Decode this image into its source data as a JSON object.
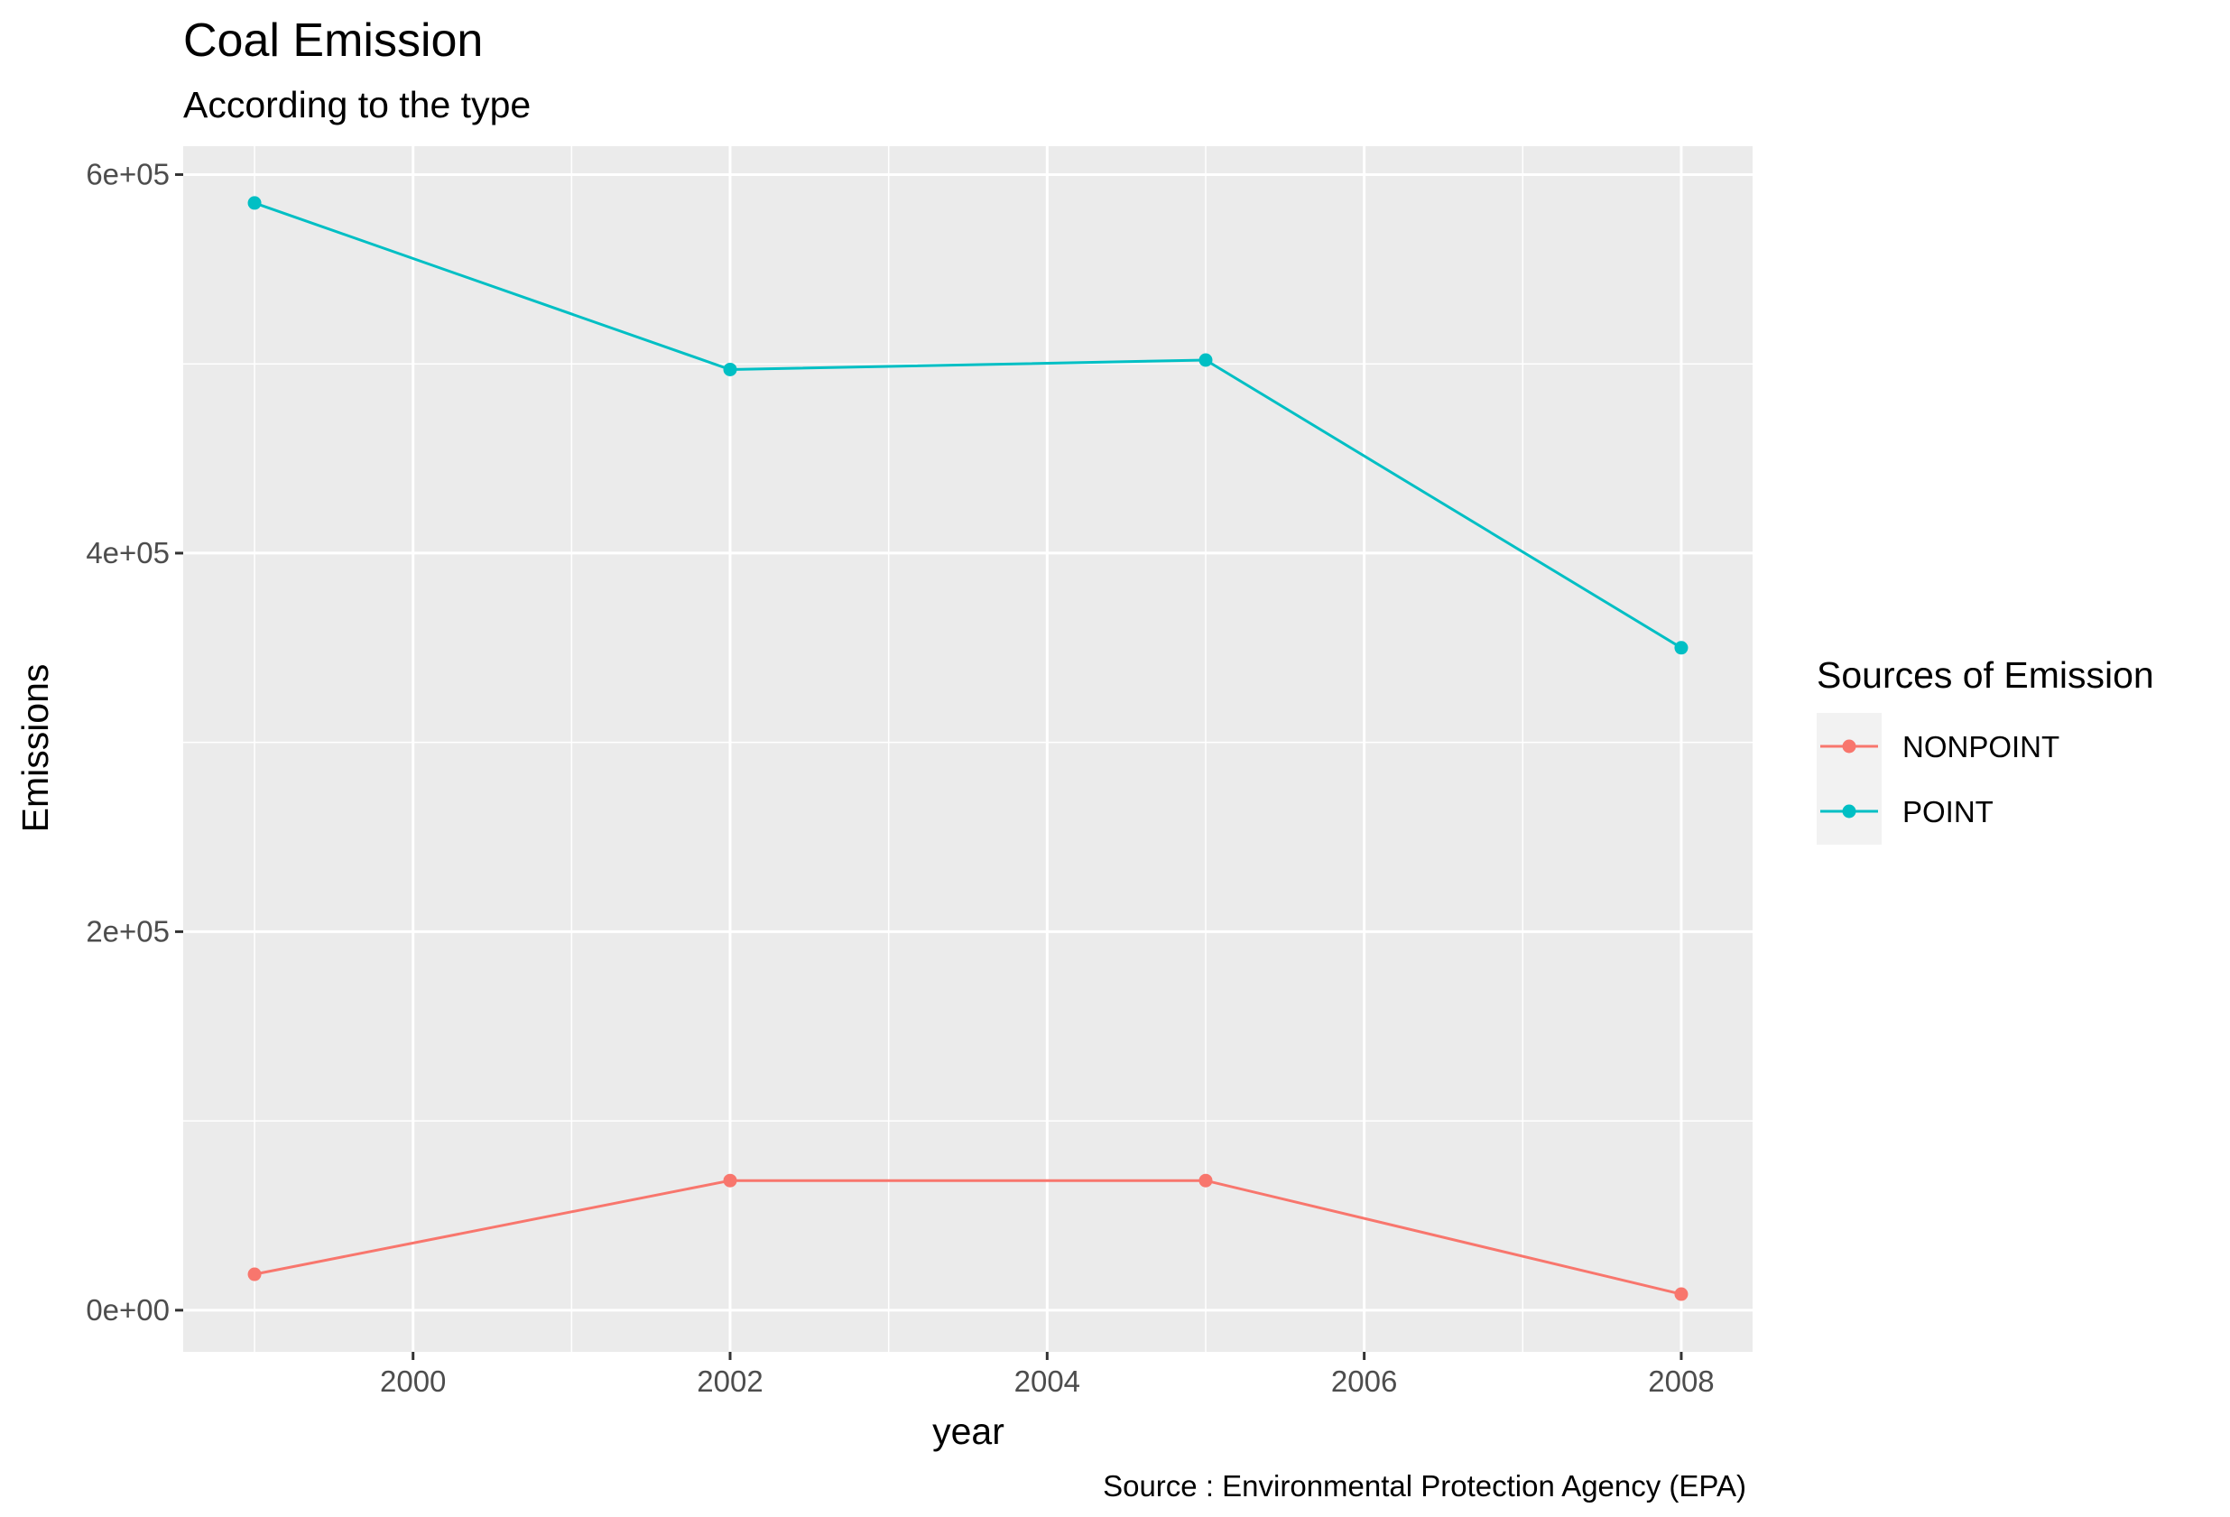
{
  "chart_data": {
    "type": "line",
    "title": "Coal Emission",
    "subtitle": "According to the type",
    "xlabel": "year",
    "ylabel": "Emissions",
    "caption": "Source : Environmental Protection Agency (EPA)",
    "x": [
      1999,
      2002,
      2005,
      2008
    ],
    "xlim": [
      1998.55,
      2008.45
    ],
    "ylim": [
      -22000,
      615000
    ],
    "x_ticks": [
      2000,
      2002,
      2004,
      2006,
      2008
    ],
    "x_tick_labels": [
      "2000",
      "2002",
      "2004",
      "2006",
      "2008"
    ],
    "x_minor_ticks": [
      1999,
      2001,
      2003,
      2005,
      2007
    ],
    "y_ticks": [
      0,
      200000,
      400000,
      600000
    ],
    "y_tick_labels": [
      "0e+00",
      "2e+05",
      "4e+05",
      "6e+05"
    ],
    "y_minor_ticks": [
      100000,
      300000,
      500000
    ],
    "grid": true,
    "legend": {
      "title": "Sources of Emission",
      "position": "right"
    },
    "series": [
      {
        "name": "NONPOINT",
        "color": "#F8766D",
        "values": [
          19000,
          68500,
          68500,
          8500
        ]
      },
      {
        "name": "POINT",
        "color": "#00BFC4",
        "values": [
          585000,
          497000,
          502000,
          350000
        ]
      }
    ]
  }
}
